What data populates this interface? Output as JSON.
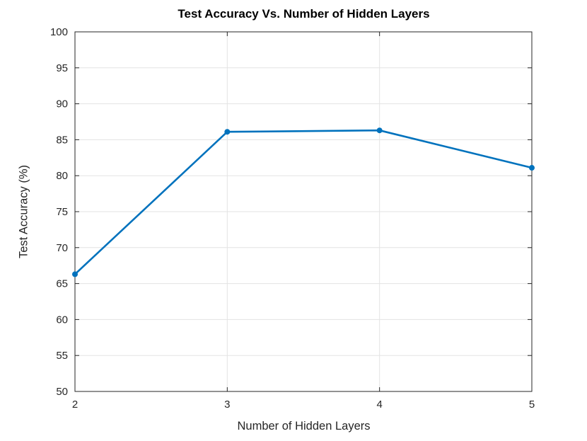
{
  "chart_data": {
    "type": "line",
    "title": "Test Accuracy Vs. Number of Hidden Layers",
    "xlabel": "Number of Hidden Layers",
    "ylabel": "Test Accuracy (%)",
    "x": [
      2,
      3,
      4,
      5
    ],
    "y": [
      66.3,
      86.1,
      86.3,
      81.1
    ],
    "xlim": [
      2,
      5
    ],
    "ylim": [
      50,
      100
    ],
    "xticks": [
      2,
      3,
      4,
      5
    ],
    "xtick_labels": [
      "2",
      "3",
      "4",
      "5"
    ],
    "yticks": [
      50,
      55,
      60,
      65,
      70,
      75,
      80,
      85,
      90,
      95,
      100
    ],
    "ytick_labels": [
      "50",
      "55",
      "60",
      "65",
      "70",
      "75",
      "80",
      "85",
      "90",
      "95",
      "100"
    ],
    "grid": true,
    "legend": null,
    "line_color": "#0072BD",
    "marker": "circle-filled",
    "grid_color": "#e3e3e3",
    "axis_color": "#262626",
    "background_color": "#ffffff"
  }
}
